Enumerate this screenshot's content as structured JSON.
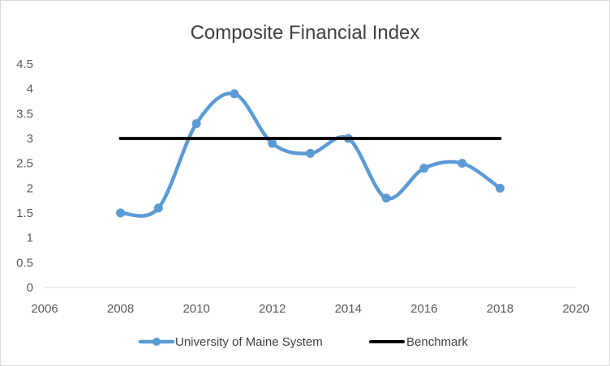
{
  "chart_data": {
    "type": "scatter",
    "title": "Composite Financial Index",
    "xlabel": "",
    "ylabel": "",
    "xlim": [
      2006,
      2020
    ],
    "ylim": [
      0,
      4.5
    ],
    "x_ticks": [
      "2006",
      "2008",
      "2010",
      "2012",
      "2014",
      "2016",
      "2018",
      "2020"
    ],
    "y_ticks": [
      "0",
      "0.5",
      "1",
      "1.5",
      "2",
      "2.5",
      "3",
      "3.5",
      "4",
      "4.5"
    ],
    "grid": false,
    "legend_position": "bottom",
    "series": [
      {
        "name": "University of Maine System",
        "color": "#5b9bd5",
        "smooth": true,
        "markers": true,
        "x": [
          2008,
          2009,
          2010,
          2011,
          2012,
          2013,
          2014,
          2015,
          2016,
          2017,
          2018
        ],
        "y": [
          1.5,
          1.6,
          3.3,
          3.9,
          2.9,
          2.7,
          3.0,
          1.8,
          2.4,
          2.5,
          2.0
        ]
      },
      {
        "name": "Benchmark",
        "color": "#000000",
        "smooth": false,
        "markers": false,
        "x": [
          2008,
          2018
        ],
        "y": [
          3,
          3
        ]
      }
    ]
  }
}
